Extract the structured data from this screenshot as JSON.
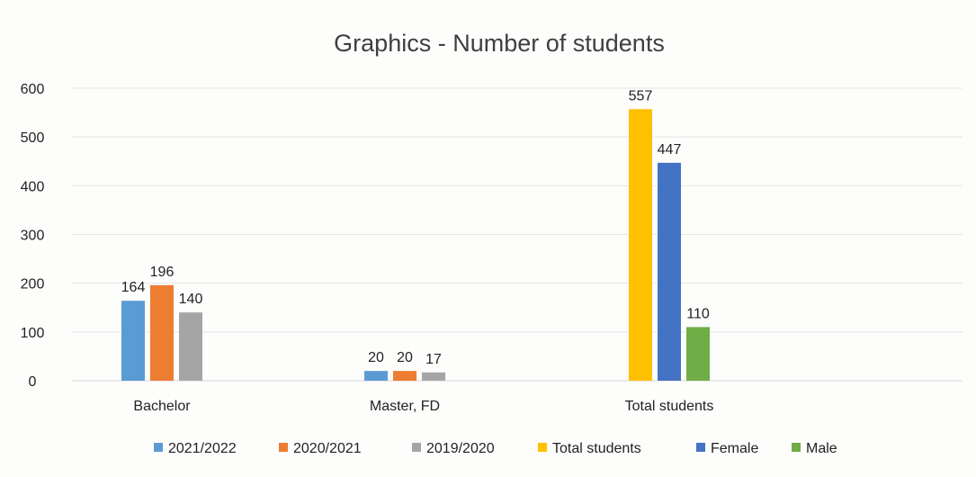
{
  "chart_data": {
    "type": "bar",
    "title": "Graphics - Number of students",
    "xlabel": "",
    "ylabel": "",
    "ylim": [
      0,
      600
    ],
    "yticks": [
      "0",
      "100",
      "200",
      "300",
      "400",
      "500",
      "600"
    ],
    "grid": true,
    "legend_position": "bottom",
    "categories": [
      "Bachelor",
      "Master, FD",
      "Total students"
    ],
    "series": [
      {
        "name": "2021/2022",
        "color": "#5b9bd5",
        "values": [
          164,
          20,
          null
        ]
      },
      {
        "name": "2020/2021",
        "color": "#ed7d31",
        "values": [
          196,
          20,
          null
        ]
      },
      {
        "name": "2019/2020",
        "color": "#a5a5a5",
        "values": [
          140,
          17,
          null
        ]
      },
      {
        "name": "Total students",
        "color": "#ffc000",
        "values": [
          null,
          null,
          557
        ]
      },
      {
        "name": "Female",
        "color": "#4472c4",
        "values": [
          null,
          null,
          447
        ]
      },
      {
        "name": "Male",
        "color": "#70ad47",
        "values": [
          null,
          null,
          110
        ]
      }
    ]
  }
}
